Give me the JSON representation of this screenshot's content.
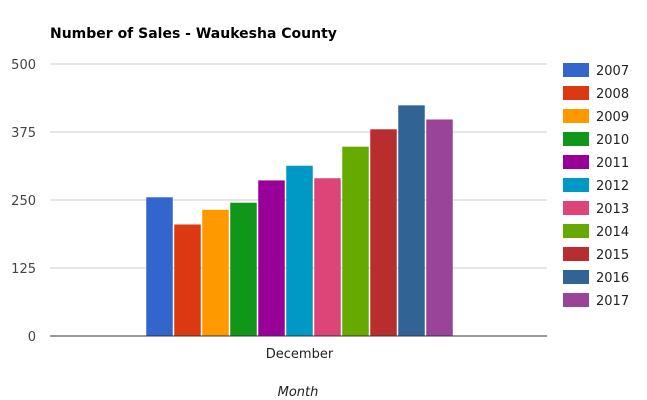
{
  "chart_data": {
    "type": "bar",
    "title": "Number of Sales - Waukesha County",
    "xlabel": "Month",
    "ylabel": "",
    "categories": [
      "December"
    ],
    "ylim": [
      0,
      500
    ],
    "yticks": [
      0,
      125,
      250,
      375,
      500
    ],
    "grid": true,
    "legend_position": "right",
    "series": [
      {
        "name": "2007",
        "values": [
          255
        ],
        "color": "#3366cc"
      },
      {
        "name": "2008",
        "values": [
          205
        ],
        "color": "#dc3912"
      },
      {
        "name": "2009",
        "values": [
          232
        ],
        "color": "#ff9900"
      },
      {
        "name": "2010",
        "values": [
          245
        ],
        "color": "#109618"
      },
      {
        "name": "2011",
        "values": [
          286
        ],
        "color": "#990099"
      },
      {
        "name": "2012",
        "values": [
          313
        ],
        "color": "#0099c6"
      },
      {
        "name": "2013",
        "values": [
          290
        ],
        "color": "#dd4477"
      },
      {
        "name": "2014",
        "values": [
          348
        ],
        "color": "#66aa00"
      },
      {
        "name": "2015",
        "values": [
          380
        ],
        "color": "#b82e2e"
      },
      {
        "name": "2016",
        "values": [
          424
        ],
        "color": "#316395"
      },
      {
        "name": "2017",
        "values": [
          398
        ],
        "color": "#994499"
      }
    ]
  }
}
